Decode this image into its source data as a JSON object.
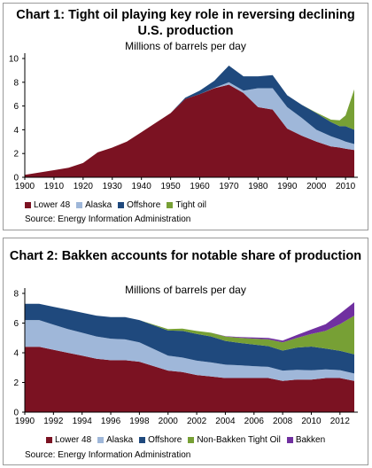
{
  "source_label": "Source: Energy Information Administration",
  "colors": {
    "lower48": "#7B1222",
    "alaska": "#9FB7D9",
    "offshore": "#1F497D",
    "tight": "#77A035",
    "nonbakken": "#77A035",
    "bakken": "#7030A0",
    "axis": "#000000"
  },
  "chart_data": [
    {
      "type": "area",
      "stacked": true,
      "title": "Chart 1: Tight oil playing key role in reversing declining U.S. production",
      "subtitle": "Millions of barrels per day",
      "xlabel": "",
      "ylabel": "",
      "xlim": [
        1900,
        2013
      ],
      "ylim": [
        0,
        10
      ],
      "x_ticks": [
        "1900",
        "1910",
        "1920",
        "1930",
        "1940",
        "1950",
        "1960",
        "1970",
        "1980",
        "1990",
        "2000",
        "2010"
      ],
      "y_ticks": [
        "0",
        "2",
        "4",
        "6",
        "8",
        "10"
      ],
      "legend_position": "bottom",
      "x": [
        1900,
        1905,
        1910,
        1915,
        1920,
        1925,
        1930,
        1935,
        1940,
        1945,
        1950,
        1955,
        1960,
        1965,
        1970,
        1975,
        1980,
        1985,
        1990,
        1995,
        2000,
        2005,
        2008,
        2010,
        2013
      ],
      "series": [
        {
          "name": "Lower 48",
          "key": "lower48",
          "values": [
            0.2,
            0.4,
            0.6,
            0.8,
            1.2,
            2.1,
            2.5,
            3.0,
            3.8,
            4.6,
            5.4,
            6.6,
            7.0,
            7.5,
            7.8,
            7.1,
            5.9,
            5.7,
            4.1,
            3.5,
            3.0,
            2.6,
            2.5,
            2.4,
            2.3
          ]
        },
        {
          "name": "Alaska",
          "key": "alaska",
          "values": [
            0,
            0,
            0,
            0,
            0,
            0,
            0,
            0,
            0,
            0,
            0,
            0,
            0,
            0.03,
            0.2,
            0.2,
            1.6,
            1.8,
            1.8,
            1.5,
            1.0,
            0.85,
            0.7,
            0.6,
            0.5
          ]
        },
        {
          "name": "Offshore",
          "key": "offshore",
          "values": [
            0,
            0,
            0,
            0,
            0,
            0,
            0,
            0,
            0,
            0,
            0,
            0.1,
            0.3,
            0.6,
            1.4,
            1.2,
            1.0,
            1.1,
            1.0,
            1.1,
            1.4,
            1.2,
            1.1,
            1.3,
            1.2
          ]
        },
        {
          "name": "Tight oil",
          "key": "tight",
          "values": [
            0,
            0,
            0,
            0,
            0,
            0,
            0,
            0,
            0,
            0,
            0,
            0,
            0,
            0,
            0,
            0,
            0,
            0,
            0,
            0,
            0.05,
            0.2,
            0.5,
            0.9,
            3.4
          ]
        }
      ]
    },
    {
      "type": "area",
      "stacked": true,
      "title": "Chart 2: Bakken accounts for notable share of production",
      "subtitle": "Millions of barrels per day",
      "xlabel": "",
      "ylabel": "",
      "xlim": [
        1990,
        2013
      ],
      "ylim": [
        0,
        8
      ],
      "x_ticks": [
        "1990",
        "1992",
        "1994",
        "1996",
        "1998",
        "2000",
        "2002",
        "2004",
        "2006",
        "2008",
        "2010",
        "2012"
      ],
      "y_ticks": [
        "0",
        "2",
        "4",
        "6",
        "8"
      ],
      "legend_position": "bottom",
      "x": [
        1990,
        1991,
        1992,
        1993,
        1994,
        1995,
        1996,
        1997,
        1998,
        1999,
        2000,
        2001,
        2002,
        2003,
        2004,
        2005,
        2006,
        2007,
        2008,
        2009,
        2010,
        2011,
        2012,
        2013
      ],
      "series": [
        {
          "name": "Lower 48",
          "key": "lower48",
          "values": [
            4.4,
            4.4,
            4.2,
            4.0,
            3.8,
            3.6,
            3.5,
            3.5,
            3.4,
            3.1,
            2.8,
            2.7,
            2.5,
            2.4,
            2.3,
            2.3,
            2.3,
            2.3,
            2.1,
            2.2,
            2.2,
            2.3,
            2.3,
            2.1
          ]
        },
        {
          "name": "Alaska",
          "key": "alaska",
          "values": [
            1.8,
            1.8,
            1.7,
            1.6,
            1.55,
            1.5,
            1.45,
            1.4,
            1.3,
            1.15,
            1.0,
            0.98,
            0.97,
            0.95,
            0.9,
            0.86,
            0.8,
            0.75,
            0.7,
            0.65,
            0.62,
            0.58,
            0.53,
            0.5
          ]
        },
        {
          "name": "Offshore",
          "key": "offshore",
          "values": [
            1.1,
            1.1,
            1.2,
            1.3,
            1.35,
            1.4,
            1.45,
            1.5,
            1.5,
            1.6,
            1.7,
            1.8,
            1.8,
            1.75,
            1.6,
            1.5,
            1.45,
            1.4,
            1.35,
            1.5,
            1.6,
            1.4,
            1.3,
            1.3
          ]
        },
        {
          "name": "Non-Bakken Tight Oil",
          "key": "nonbakken",
          "values": [
            0,
            0,
            0,
            0,
            0,
            0,
            0,
            0,
            0,
            0.05,
            0.1,
            0.15,
            0.2,
            0.25,
            0.3,
            0.35,
            0.4,
            0.45,
            0.55,
            0.65,
            0.85,
            1.2,
            1.8,
            2.6
          ]
        },
        {
          "name": "Bakken",
          "key": "bakken",
          "values": [
            0,
            0,
            0,
            0,
            0,
            0,
            0,
            0,
            0,
            0,
            0,
            0,
            0,
            0,
            0.02,
            0.05,
            0.08,
            0.1,
            0.12,
            0.2,
            0.3,
            0.45,
            0.7,
            0.9
          ]
        }
      ]
    }
  ]
}
